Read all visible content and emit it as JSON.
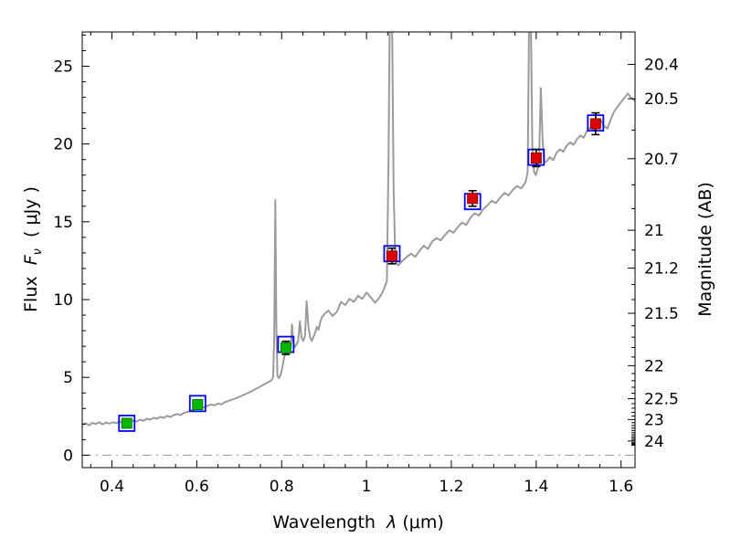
{
  "figure": {
    "background": "#ffffff"
  },
  "chart_data": {
    "type": "line+scatter",
    "title": "",
    "xlabel": {
      "word": "Wavelength",
      "sym": "λ",
      "unit": "(μm)"
    },
    "ylabel_left": {
      "word": "Flux",
      "sym": "F",
      "sub": "ν",
      "unit": "( μJy )"
    },
    "ylabel_right": "Magnitude (AB)",
    "xlim": [
      0.33,
      1.633
    ],
    "ylim": [
      -0.8,
      27.2
    ],
    "x_major_ticks": [
      0.4,
      0.6,
      0.8,
      1.0,
      1.2,
      1.4,
      1.6
    ],
    "x_tick_labels": [
      "0.4",
      "0.6",
      "0.8",
      "1",
      "1.2",
      "1.4",
      "1.6"
    ],
    "x_minor_step": 0.05,
    "y_major_ticks": [
      0,
      5,
      10,
      15,
      20,
      25
    ],
    "y_tick_labels": [
      "0",
      "5",
      "10",
      "15",
      "20",
      "25"
    ],
    "y_minor_step": 1,
    "right_axis": {
      "ab_zeropoint": 23.9,
      "major_ticks": [
        {
          "mag": 20.4,
          "label": "20.4"
        },
        {
          "mag": 20.5,
          "label": "20.5"
        },
        {
          "mag": 20.7,
          "label": "20.7"
        },
        {
          "mag": 21.0,
          "label": "21"
        },
        {
          "mag": 21.2,
          "label": "21.2"
        },
        {
          "mag": 21.5,
          "label": "21.5"
        },
        {
          "mag": 22.0,
          "label": "22"
        },
        {
          "mag": 22.5,
          "label": "22.5"
        },
        {
          "mag": 23.0,
          "label": "23"
        },
        {
          "mag": 24.0,
          "label": "24"
        }
      ],
      "minor_step": 0.1,
      "minor_range": [
        20.4,
        24.4
      ]
    },
    "zero_line": {
      "y": 0,
      "color": "#999999",
      "dash": "10 5 2 5"
    },
    "spectrum": {
      "color": "#9b9b9b",
      "linewidth": 2,
      "points": [
        [
          0.33,
          1.95
        ],
        [
          0.338,
          2.05
        ],
        [
          0.346,
          1.92
        ],
        [
          0.354,
          2.08
        ],
        [
          0.362,
          2.0
        ],
        [
          0.37,
          2.12
        ],
        [
          0.378,
          1.98
        ],
        [
          0.386,
          2.1
        ],
        [
          0.394,
          2.03
        ],
        [
          0.402,
          2.12
        ],
        [
          0.41,
          2.06
        ],
        [
          0.418,
          2.16
        ],
        [
          0.426,
          2.08
        ],
        [
          0.434,
          2.18
        ],
        [
          0.442,
          2.1
        ],
        [
          0.45,
          2.22
        ],
        [
          0.458,
          2.16
        ],
        [
          0.466,
          2.28
        ],
        [
          0.474,
          2.22
        ],
        [
          0.482,
          2.34
        ],
        [
          0.49,
          2.28
        ],
        [
          0.498,
          2.4
        ],
        [
          0.506,
          2.34
        ],
        [
          0.514,
          2.46
        ],
        [
          0.522,
          2.4
        ],
        [
          0.53,
          2.52
        ],
        [
          0.538,
          2.46
        ],
        [
          0.546,
          2.58
        ],
        [
          0.554,
          2.64
        ],
        [
          0.562,
          2.58
        ],
        [
          0.57,
          2.72
        ],
        [
          0.578,
          2.78
        ],
        [
          0.586,
          2.86
        ],
        [
          0.594,
          2.94
        ],
        [
          0.602,
          3.04
        ],
        [
          0.61,
          3.12
        ],
        [
          0.618,
          3.06
        ],
        [
          0.626,
          3.18
        ],
        [
          0.634,
          3.26
        ],
        [
          0.642,
          3.2
        ],
        [
          0.65,
          3.32
        ],
        [
          0.658,
          3.26
        ],
        [
          0.666,
          3.4
        ],
        [
          0.674,
          3.48
        ],
        [
          0.682,
          3.56
        ],
        [
          0.69,
          3.64
        ],
        [
          0.698,
          3.72
        ],
        [
          0.706,
          3.82
        ],
        [
          0.714,
          3.92
        ],
        [
          0.722,
          4.02
        ],
        [
          0.73,
          4.12
        ],
        [
          0.738,
          4.24
        ],
        [
          0.746,
          4.36
        ],
        [
          0.754,
          4.48
        ],
        [
          0.762,
          4.6
        ],
        [
          0.77,
          4.72
        ],
        [
          0.776,
          4.82
        ],
        [
          0.78,
          5.0
        ],
        [
          0.7825,
          7.5
        ],
        [
          0.785,
          16.4
        ],
        [
          0.7875,
          8.5
        ],
        [
          0.79,
          5.1
        ],
        [
          0.794,
          4.95
        ],
        [
          0.798,
          5.2
        ],
        [
          0.802,
          5.7
        ],
        [
          0.806,
          6.3
        ],
        [
          0.81,
          6.6
        ],
        [
          0.814,
          6.5
        ],
        [
          0.818,
          6.75
        ],
        [
          0.822,
          7.0
        ],
        [
          0.8245,
          8.4
        ],
        [
          0.827,
          7.3
        ],
        [
          0.831,
          6.95
        ],
        [
          0.835,
          7.1
        ],
        [
          0.839,
          7.35
        ],
        [
          0.843,
          8.6
        ],
        [
          0.847,
          7.55
        ],
        [
          0.851,
          7.35
        ],
        [
          0.855,
          7.65
        ],
        [
          0.859,
          9.9
        ],
        [
          0.863,
          8.3
        ],
        [
          0.867,
          7.6
        ],
        [
          0.871,
          7.35
        ],
        [
          0.875,
          7.6
        ],
        [
          0.879,
          7.9
        ],
        [
          0.883,
          8.25
        ],
        [
          0.887,
          8.05
        ],
        [
          0.891,
          8.55
        ],
        [
          0.895,
          8.85
        ],
        [
          0.9,
          9.05
        ],
        [
          0.91,
          9.3
        ],
        [
          0.92,
          8.95
        ],
        [
          0.93,
          9.2
        ],
        [
          0.94,
          9.85
        ],
        [
          0.95,
          9.65
        ],
        [
          0.96,
          10.05
        ],
        [
          0.97,
          9.85
        ],
        [
          0.98,
          10.25
        ],
        [
          0.99,
          10.05
        ],
        [
          1.0,
          10.45
        ],
        [
          1.01,
          10.15
        ],
        [
          1.02,
          9.8
        ],
        [
          1.03,
          10.1
        ],
        [
          1.04,
          10.6
        ],
        [
          1.048,
          11.2
        ],
        [
          1.052,
          19.0
        ],
        [
          1.055,
          28.8
        ],
        [
          1.06,
          28.8
        ],
        [
          1.064,
          17.0
        ],
        [
          1.068,
          12.4
        ],
        [
          1.075,
          12.2
        ],
        [
          1.085,
          12.5
        ],
        [
          1.095,
          12.75
        ],
        [
          1.105,
          12.95
        ],
        [
          1.115,
          12.75
        ],
        [
          1.125,
          13.15
        ],
        [
          1.135,
          13.45
        ],
        [
          1.145,
          13.25
        ],
        [
          1.155,
          13.75
        ],
        [
          1.165,
          13.95
        ],
        [
          1.175,
          13.8
        ],
        [
          1.185,
          14.15
        ],
        [
          1.195,
          14.45
        ],
        [
          1.205,
          14.3
        ],
        [
          1.215,
          14.65
        ],
        [
          1.225,
          14.95
        ],
        [
          1.235,
          14.8
        ],
        [
          1.245,
          15.25
        ],
        [
          1.255,
          15.55
        ],
        [
          1.265,
          15.4
        ],
        [
          1.275,
          15.8
        ],
        [
          1.285,
          16.05
        ],
        [
          1.295,
          16.35
        ],
        [
          1.305,
          16.2
        ],
        [
          1.315,
          16.55
        ],
        [
          1.325,
          16.85
        ],
        [
          1.335,
          16.7
        ],
        [
          1.345,
          17.05
        ],
        [
          1.355,
          17.3
        ],
        [
          1.365,
          17.15
        ],
        [
          1.375,
          17.55
        ],
        [
          1.38,
          18.2
        ],
        [
          1.3835,
          28.8
        ],
        [
          1.387,
          28.8
        ],
        [
          1.391,
          19.8
        ],
        [
          1.395,
          18.2
        ],
        [
          1.399,
          18.0
        ],
        [
          1.403,
          18.35
        ],
        [
          1.407,
          19.3
        ],
        [
          1.411,
          23.6
        ],
        [
          1.415,
          20.3
        ],
        [
          1.419,
          18.8
        ],
        [
          1.425,
          18.9
        ],
        [
          1.432,
          19.15
        ],
        [
          1.44,
          18.95
        ],
        [
          1.448,
          19.45
        ],
        [
          1.456,
          19.65
        ],
        [
          1.464,
          19.5
        ],
        [
          1.472,
          19.9
        ],
        [
          1.48,
          20.1
        ],
        [
          1.488,
          19.95
        ],
        [
          1.496,
          20.3
        ],
        [
          1.504,
          20.55
        ],
        [
          1.512,
          20.4
        ],
        [
          1.52,
          20.85
        ],
        [
          1.528,
          21.05
        ],
        [
          1.536,
          20.9
        ],
        [
          1.544,
          21.3
        ],
        [
          1.552,
          21.55
        ],
        [
          1.56,
          21.15
        ],
        [
          1.568,
          21.0
        ],
        [
          1.576,
          21.6
        ],
        [
          1.584,
          22.1
        ],
        [
          1.592,
          22.4
        ],
        [
          1.6,
          22.7
        ],
        [
          1.608,
          22.95
        ],
        [
          1.616,
          23.25
        ],
        [
          1.624,
          22.95
        ],
        [
          1.633,
          22.8
        ]
      ]
    },
    "photometry": [
      {
        "x": 0.435,
        "y": 2.05,
        "yerr": 0.22,
        "color": "#00b800",
        "edge": "#007700"
      },
      {
        "x": 0.602,
        "y": 3.25,
        "yerr": 0.28,
        "color": "#00b800",
        "edge": "#007700"
      },
      {
        "x": 0.81,
        "y": 6.9,
        "yerr": 0.42,
        "color": "#00b800",
        "edge": "#007700"
      },
      {
        "x": 1.06,
        "y": 12.8,
        "yerr": 0.5,
        "color": "#dd0000",
        "edge": "#880000"
      },
      {
        "x": 1.25,
        "y": 16.5,
        "yerr": 0.5,
        "color": "#dd0000",
        "edge": "#880000"
      },
      {
        "x": 1.4,
        "y": 19.1,
        "yerr": 0.55,
        "color": "#dd0000",
        "edge": "#880000"
      },
      {
        "x": 1.54,
        "y": 21.3,
        "yerr": 0.7,
        "color": "#dd0000",
        "edge": "#880000"
      }
    ],
    "model_squares": {
      "color": "#0000ee",
      "points": [
        {
          "x": 0.435,
          "y": 2.05
        },
        {
          "x": 0.602,
          "y": 3.32
        },
        {
          "x": 0.81,
          "y": 7.12
        },
        {
          "x": 1.06,
          "y": 12.95
        },
        {
          "x": 1.25,
          "y": 16.3
        },
        {
          "x": 1.4,
          "y": 19.15
        },
        {
          "x": 1.54,
          "y": 21.35
        }
      ]
    }
  }
}
